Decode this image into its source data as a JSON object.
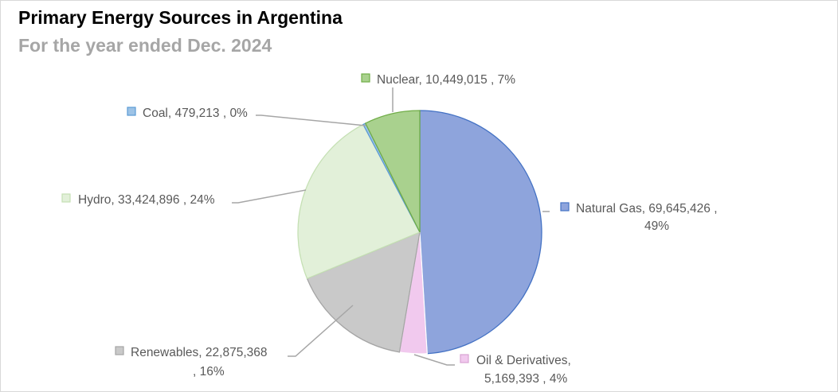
{
  "title": "Primary Energy Sources in Argentina",
  "subtitle": "For the year ended Dec. 2024",
  "chart_data": {
    "type": "pie",
    "title": "Primary Energy Sources in Argentina",
    "subtitle": "For the year ended Dec. 2024",
    "legend": "none (data labels with category, value, percent)",
    "slices": [
      {
        "name": "Natural Gas",
        "value": 69645426,
        "value_label": "69,645,426",
        "percent_label": "49%",
        "color": "#8ea4dc",
        "border": "#4472c4"
      },
      {
        "name": "Oil & Derivatives",
        "value": 5169393,
        "value_label": "5,169,393",
        "percent_label": "4%",
        "color": "#f1c9ee",
        "border": "#ffffff"
      },
      {
        "name": "Renewables",
        "value": 22875368,
        "value_label": "22,875,368",
        "percent_label": "16%",
        "color": "#c9c9c9",
        "border": "#a5a5a5"
      },
      {
        "name": "Hydro",
        "value": 33424896,
        "value_label": "33,424,896",
        "percent_label": "24%",
        "color": "#e2f0d9",
        "border": "#c5e0b4"
      },
      {
        "name": "Coal",
        "value": 479213,
        "value_label": "479,213",
        "percent_label": "0%",
        "color": "#9dc3e6",
        "border": "#5b9bd5"
      },
      {
        "name": "Nuclear",
        "value": 10449015,
        "value_label": "10,449,015",
        "percent_label": "7%",
        "color": "#a9d18e",
        "border": "#70ad47"
      }
    ]
  }
}
